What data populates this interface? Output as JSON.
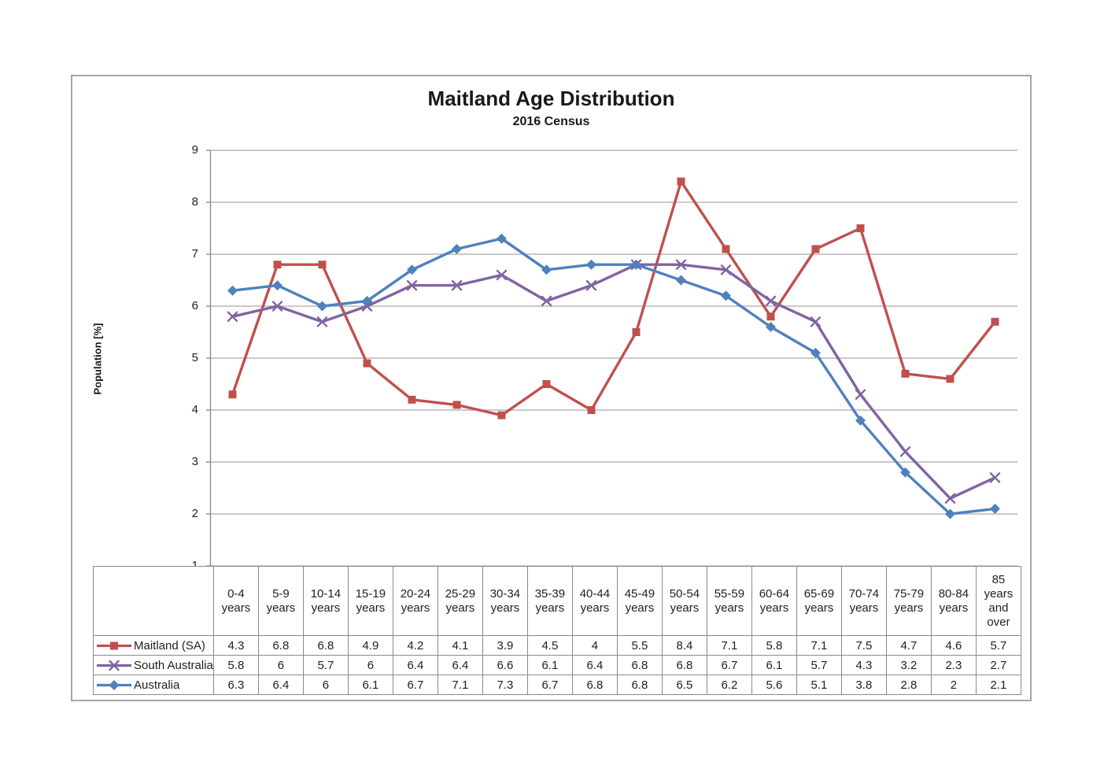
{
  "chart_data": {
    "type": "line",
    "title": "Maitland Age Distribution",
    "subtitle": "2016 Census",
    "ylabel": "Population [%]",
    "ylim": [
      1,
      9
    ],
    "ytick_step": 1,
    "grid": true,
    "legend_position": "table-left",
    "categories": [
      "0-4 years",
      "5-9 years",
      "10-14 years",
      "15-19 years",
      "20-24 years",
      "25-29 years",
      "30-34 years",
      "35-39 years",
      "40-44 years",
      "45-49 years",
      "50-54 years",
      "55-59 years",
      "60-64 years",
      "65-69 years",
      "70-74 years",
      "75-79 years",
      "80-84 years",
      "85 years and over"
    ],
    "series": [
      {
        "name": "Maitland (SA)",
        "color": "#C0504D",
        "marker": "square",
        "values": [
          4.3,
          6.8,
          6.8,
          4.9,
          4.2,
          4.1,
          3.9,
          4.5,
          4,
          5.5,
          8.4,
          7.1,
          5.8,
          7.1,
          7.5,
          4.7,
          4.6,
          5.7
        ]
      },
      {
        "name": "South Australia",
        "color": "#8064A2",
        "marker": "x",
        "values": [
          5.8,
          6,
          5.7,
          6,
          6.4,
          6.4,
          6.6,
          6.1,
          6.4,
          6.8,
          6.8,
          6.7,
          6.1,
          5.7,
          4.3,
          3.2,
          2.3,
          2.7
        ]
      },
      {
        "name": "Australia",
        "color": "#4F81BD",
        "marker": "diamond",
        "values": [
          6.3,
          6.4,
          6,
          6.1,
          6.7,
          7.1,
          7.3,
          6.7,
          6.8,
          6.8,
          6.5,
          6.2,
          5.6,
          5.1,
          3.8,
          2.8,
          2,
          2.1
        ]
      }
    ],
    "colors": {
      "gridline": "#a9a9a9",
      "axis": "#8c8c8c",
      "table_border": "#8a8a8a",
      "text": "#1f1f1f"
    }
  }
}
